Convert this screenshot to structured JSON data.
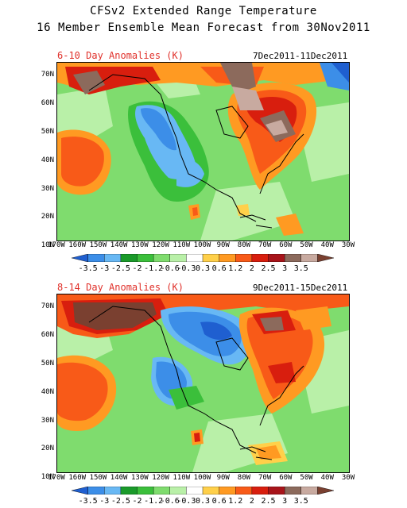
{
  "header": {
    "title_line1": "CFSv2 Extended Range Temperature",
    "title_line2": "16 Member Ensemble Mean Forecast from 30Nov2011"
  },
  "panels": [
    {
      "label": "6-10 Day Anomalies (K)",
      "dates": "7Dec2011-11Dec2011"
    },
    {
      "label": "8-14 Day Anomalies (K)",
      "dates": "9Dec2011-15Dec2011"
    }
  ],
  "lat_labels": [
    "70N",
    "60N",
    "50N",
    "40N",
    "30N",
    "20N",
    "10N"
  ],
  "lon_labels": [
    "170W",
    "160W",
    "150W",
    "140W",
    "130W",
    "120W",
    "110W",
    "100W",
    "90W",
    "80W",
    "70W",
    "60W",
    "50W",
    "40W",
    "30W"
  ],
  "colorbar": {
    "labels": [
      "-3.5",
      "-3",
      "-2.5",
      "-2",
      "-1.2",
      "-0.6",
      "-0.3",
      "0.3",
      "0.6",
      "1.2",
      "2",
      "2.5",
      "3",
      "3.5"
    ],
    "colors": [
      "#1f5fd0",
      "#3c8ee8",
      "#68b8f4",
      "#1a9a2a",
      "#3bbf3b",
      "#7fdc6e",
      "#b9f0a8",
      "#ffffff",
      "#ffd04a",
      "#ff9a22",
      "#f85a18",
      "#d81e0e",
      "#a8141a",
      "#8c6a5c",
      "#c8aaa0",
      "#7a4030"
    ]
  },
  "legend_colors_mid": "#ffffff"
}
